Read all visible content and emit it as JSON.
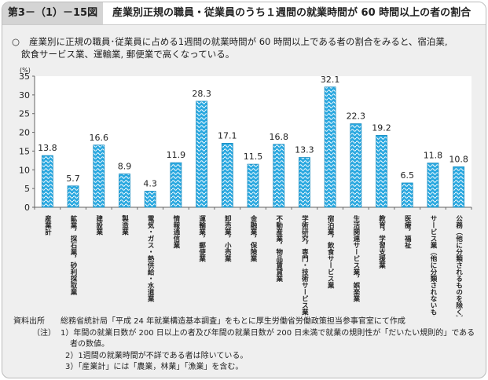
{
  "header": {
    "figure_number": "第3－（1）－15図",
    "title": "産業別正規の職員・従業員のうち１週間の就業時間が 60 時間以上の者の割合"
  },
  "summary": {
    "mark": "○",
    "line1": "産業別に正規の職員･従業員に占める1週間の就業時間が 60 時間以上である者の割合をみると、宿泊業,",
    "line2": "飲食サービス業、運輸業, 郵便業で高くなっている。"
  },
  "chart_data": {
    "type": "bar",
    "ylabel": "(%)",
    "ylim": [
      0,
      35
    ],
    "yticks": [
      0,
      5,
      10,
      15,
      20,
      25,
      30,
      35
    ],
    "grid": false,
    "bar_color": "#29a8e0",
    "categories": [
      "産業計",
      "鉱業，採石業，砂利採取業",
      "建設業",
      "製造業",
      "電気・ガス・熱供給・水道業",
      "情報通信業",
      "運輸業，郵便業",
      "卸売業，小売業",
      "金融業，保険業",
      "不動産業，物品賃貸業",
      "学術研究，専門・技術サービス業",
      "宿泊業，飲食サービス業",
      "生活関連サービス業，娯楽業",
      "教育，学習支援業",
      "医療，福祉",
      "サービス業（他に分類されないもの）",
      "公務（他に分類されるものを除く）"
    ],
    "values": [
      13.8,
      5.7,
      16.6,
      8.9,
      4.3,
      11.9,
      28.3,
      17.1,
      11.5,
      16.8,
      13.3,
      32.1,
      22.3,
      19.2,
      6.5,
      11.8,
      10.8
    ]
  },
  "notes": {
    "source_label": "資料出所",
    "source": "総務省統計局「平成 24 年就業構造基本調査」をもとに厚生労働省労働政策担当参事官室にて作成",
    "note_label": "（注）",
    "note1": "1）年間の就業日数が 200 日以上の者及び年間の就業日数が 200 日未満で就業の規則性が「だいたい規則的」である",
    "note1b": "者の数値。",
    "note2": "2）1週間の就業時間が不詳である者は除いている。",
    "note3": "3）「産業計」には「農業，林業」「漁業」を含む。"
  }
}
